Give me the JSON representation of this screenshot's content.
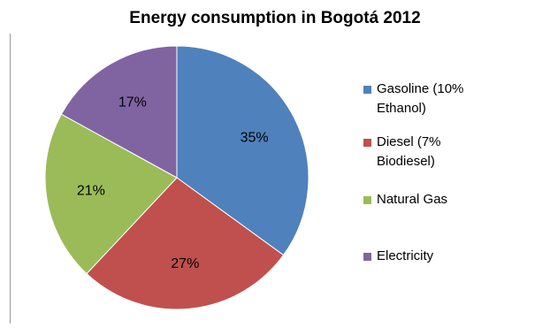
{
  "chart_data": {
    "type": "pie",
    "title": "Energy consumption in Bogotá 2012",
    "slices": [
      {
        "label": "Gasoline (10% Ethanol)",
        "value": 35,
        "value_label": "35%",
        "color": "#4F81BD"
      },
      {
        "label": "Diesel (7% Biodiesel)",
        "value": 27,
        "value_label": "27%",
        "color": "#C0504D"
      },
      {
        "label": "Natural Gas",
        "value": 21,
        "value_label": "21%",
        "color": "#9BBB59"
      },
      {
        "label": "Electricity",
        "value": 17,
        "value_label": "17%",
        "color": "#8064A2"
      }
    ],
    "legend_position": "right",
    "start_angle_deg": 0,
    "direction": "clockwise"
  }
}
